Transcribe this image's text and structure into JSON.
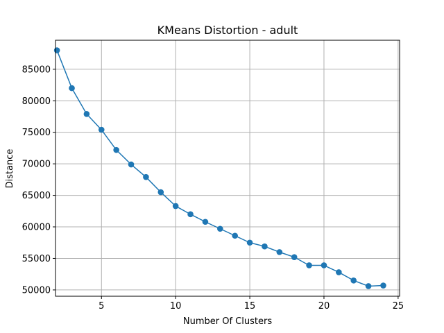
{
  "chart_data": {
    "type": "line",
    "title": "KMeans Distortion - adult",
    "xlabel": "Number Of Clusters",
    "ylabel": "Distance",
    "xlim": [
      1.9,
      25.1
    ],
    "ylim": [
      49000,
      89600
    ],
    "xticks": [
      5,
      10,
      15,
      20,
      25
    ],
    "xtick_labels": [
      "5",
      "10",
      "15",
      "20",
      "25"
    ],
    "yticks": [
      50000,
      55000,
      60000,
      65000,
      70000,
      75000,
      80000,
      85000
    ],
    "ytick_labels": [
      "50000",
      "55000",
      "60000",
      "65000",
      "70000",
      "75000",
      "80000",
      "85000"
    ],
    "grid": true,
    "markers": "circle",
    "series": [
      {
        "color": "#1f77b4",
        "x": [
          2,
          3,
          4,
          5,
          6,
          7,
          8,
          9,
          10,
          11,
          12,
          13,
          14,
          15,
          16,
          17,
          18,
          19,
          20,
          21,
          22,
          23,
          24
        ],
        "y": [
          88000,
          82000,
          77900,
          75400,
          72200,
          69900,
          67900,
          65500,
          63300,
          62000,
          60800,
          59700,
          58600,
          57500,
          56900,
          56000,
          55200,
          53900,
          53900,
          52800,
          51500,
          50600,
          50700
        ]
      }
    ]
  }
}
